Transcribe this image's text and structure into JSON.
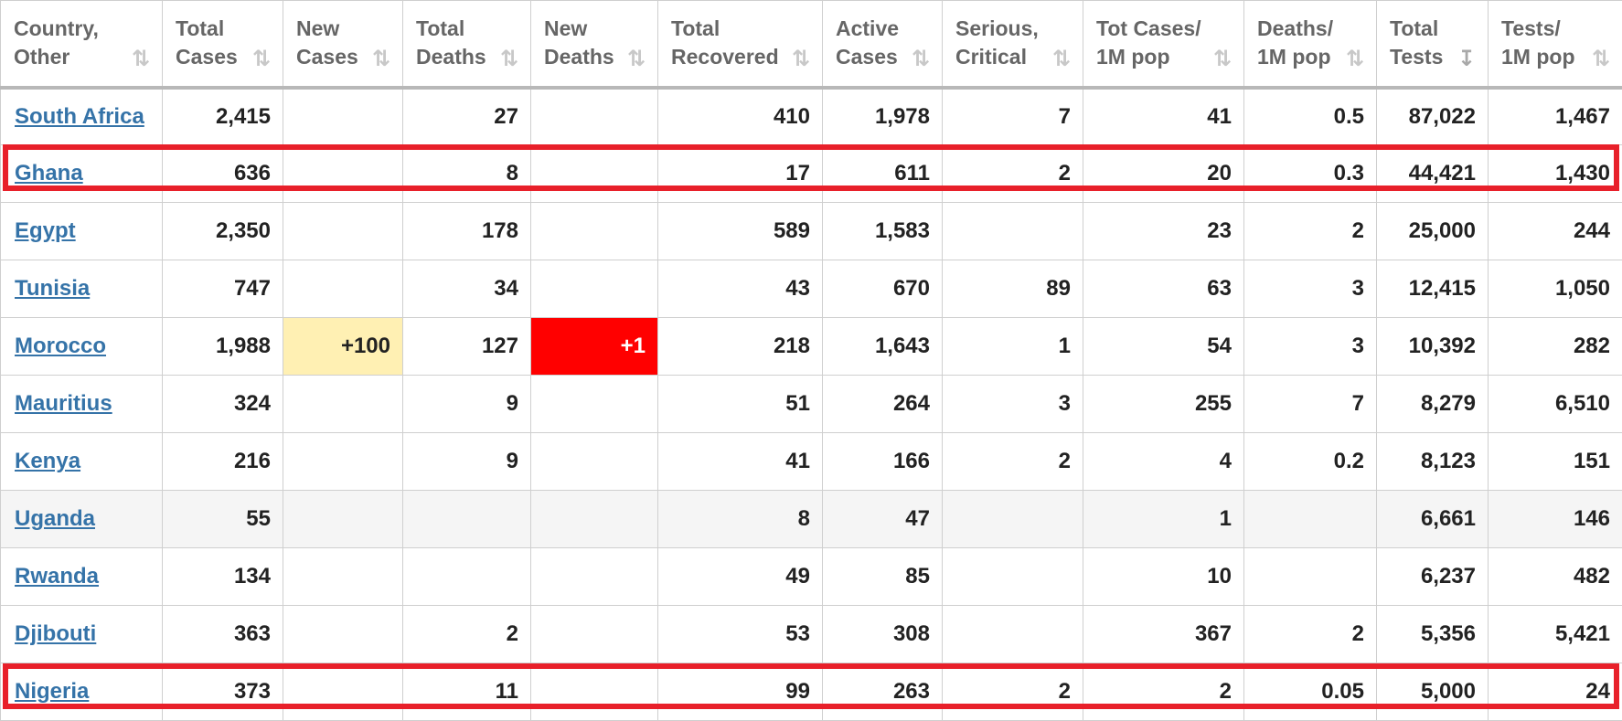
{
  "columns": [
    {
      "label": "Country,\nOther"
    },
    {
      "label": "Total\nCases"
    },
    {
      "label": "New\nCases"
    },
    {
      "label": "Total\nDeaths"
    },
    {
      "label": "New\nDeaths"
    },
    {
      "label": "Total\nRecovered"
    },
    {
      "label": "Active\nCases"
    },
    {
      "label": "Serious,\nCritical"
    },
    {
      "label": "Tot Cases/\n1M pop"
    },
    {
      "label": "Deaths/\n1M pop"
    },
    {
      "label": "Total\nTests"
    },
    {
      "label": "Tests/\n1M pop"
    }
  ],
  "sort_icons": {
    "default": "sort-both-icon",
    "active": "sort-desc-icon",
    "active_column": "Total Tests"
  },
  "rows": [
    {
      "country": "South Africa",
      "total_cases": "2,415",
      "new_cases": "",
      "total_deaths": "27",
      "new_deaths": "",
      "total_recovered": "410",
      "active_cases": "1,978",
      "serious_critical": "7",
      "cases_per_1m": "41",
      "deaths_per_1m": "0.5",
      "total_tests": "87,022",
      "tests_per_1m": "1,467"
    },
    {
      "country": "Ghana",
      "total_cases": "636",
      "new_cases": "",
      "total_deaths": "8",
      "new_deaths": "",
      "total_recovered": "17",
      "active_cases": "611",
      "serious_critical": "2",
      "cases_per_1m": "20",
      "deaths_per_1m": "0.3",
      "total_tests": "44,421",
      "tests_per_1m": "1,430"
    },
    {
      "country": "Egypt",
      "total_cases": "2,350",
      "new_cases": "",
      "total_deaths": "178",
      "new_deaths": "",
      "total_recovered": "589",
      "active_cases": "1,583",
      "serious_critical": "",
      "cases_per_1m": "23",
      "deaths_per_1m": "2",
      "total_tests": "25,000",
      "tests_per_1m": "244"
    },
    {
      "country": "Tunisia",
      "total_cases": "747",
      "new_cases": "",
      "total_deaths": "34",
      "new_deaths": "",
      "total_recovered": "43",
      "active_cases": "670",
      "serious_critical": "89",
      "cases_per_1m": "63",
      "deaths_per_1m": "3",
      "total_tests": "12,415",
      "tests_per_1m": "1,050"
    },
    {
      "country": "Morocco",
      "total_cases": "1,988",
      "new_cases": "+100",
      "total_deaths": "127",
      "new_deaths": "+1",
      "total_recovered": "218",
      "active_cases": "1,643",
      "serious_critical": "1",
      "cases_per_1m": "54",
      "deaths_per_1m": "3",
      "total_tests": "10,392",
      "tests_per_1m": "282"
    },
    {
      "country": "Mauritius",
      "total_cases": "324",
      "new_cases": "",
      "total_deaths": "9",
      "new_deaths": "",
      "total_recovered": "51",
      "active_cases": "264",
      "serious_critical": "3",
      "cases_per_1m": "255",
      "deaths_per_1m": "7",
      "total_tests": "8,279",
      "tests_per_1m": "6,510"
    },
    {
      "country": "Kenya",
      "total_cases": "216",
      "new_cases": "",
      "total_deaths": "9",
      "new_deaths": "",
      "total_recovered": "41",
      "active_cases": "166",
      "serious_critical": "2",
      "cases_per_1m": "4",
      "deaths_per_1m": "0.2",
      "total_tests": "8,123",
      "tests_per_1m": "151"
    },
    {
      "country": "Uganda",
      "total_cases": "55",
      "new_cases": "",
      "total_deaths": "",
      "new_deaths": "",
      "total_recovered": "8",
      "active_cases": "47",
      "serious_critical": "",
      "cases_per_1m": "1",
      "deaths_per_1m": "",
      "total_tests": "6,661",
      "tests_per_1m": "146"
    },
    {
      "country": "Rwanda",
      "total_cases": "134",
      "new_cases": "",
      "total_deaths": "",
      "new_deaths": "",
      "total_recovered": "49",
      "active_cases": "85",
      "serious_critical": "",
      "cases_per_1m": "10",
      "deaths_per_1m": "",
      "total_tests": "6,237",
      "tests_per_1m": "482"
    },
    {
      "country": "Djibouti",
      "total_cases": "363",
      "new_cases": "",
      "total_deaths": "2",
      "new_deaths": "",
      "total_recovered": "53",
      "active_cases": "308",
      "serious_critical": "",
      "cases_per_1m": "367",
      "deaths_per_1m": "2",
      "total_tests": "5,356",
      "tests_per_1m": "5,421"
    },
    {
      "country": "Nigeria",
      "total_cases": "373",
      "new_cases": "",
      "total_deaths": "11",
      "new_deaths": "",
      "total_recovered": "99",
      "active_cases": "263",
      "serious_critical": "2",
      "cases_per_1m": "2",
      "deaths_per_1m": "0.05",
      "total_tests": "5,000",
      "tests_per_1m": "24"
    }
  ],
  "highlighted_rows": [
    "Ghana",
    "Nigeria"
  ],
  "colors": {
    "link": "#3573a8",
    "new_cases_bg": "#fff0b3",
    "new_deaths_bg": "#ff0000",
    "highlight_border": "#e8202a",
    "header_text": "#666666"
  }
}
